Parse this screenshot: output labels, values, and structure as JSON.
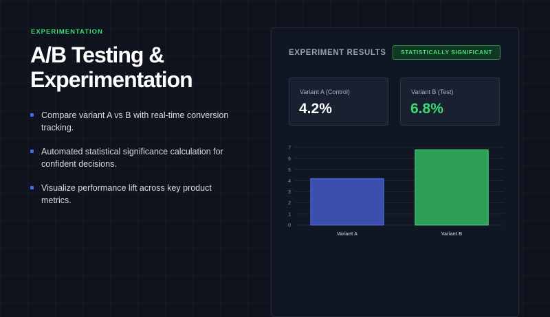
{
  "hero": {
    "eyebrow": "EXPERIMENTATION",
    "title_line1": "A/B Testing &",
    "title_line2": "Experimentation",
    "bullets": [
      "Compare variant A vs B with real-time conversion tracking.",
      "Automated statistical significance calculation for confident decisions.",
      "Visualize performance lift across key product metrics."
    ]
  },
  "panel": {
    "title": "EXPERIMENT RESULTS",
    "badge": "STATISTICALLY SIGNIFICANT",
    "variant_a": {
      "label": "Variant A (Control)",
      "value": "4.2%"
    },
    "variant_b": {
      "label": "Variant B (Test)",
      "value": "6.8%"
    }
  },
  "colors": {
    "accent_green": "#3ddc72",
    "bullet_blue": "#3f6cf2",
    "bar_a": "#3b4fae",
    "bar_b": "#2e9e57"
  },
  "chart_data": {
    "type": "bar",
    "categories": [
      "Variant A",
      "Variant B"
    ],
    "values": [
      4.2,
      6.8
    ],
    "ylim": [
      0,
      7
    ],
    "yticks": [
      0,
      1,
      2,
      3,
      4,
      5,
      6,
      7
    ],
    "grid": true
  }
}
